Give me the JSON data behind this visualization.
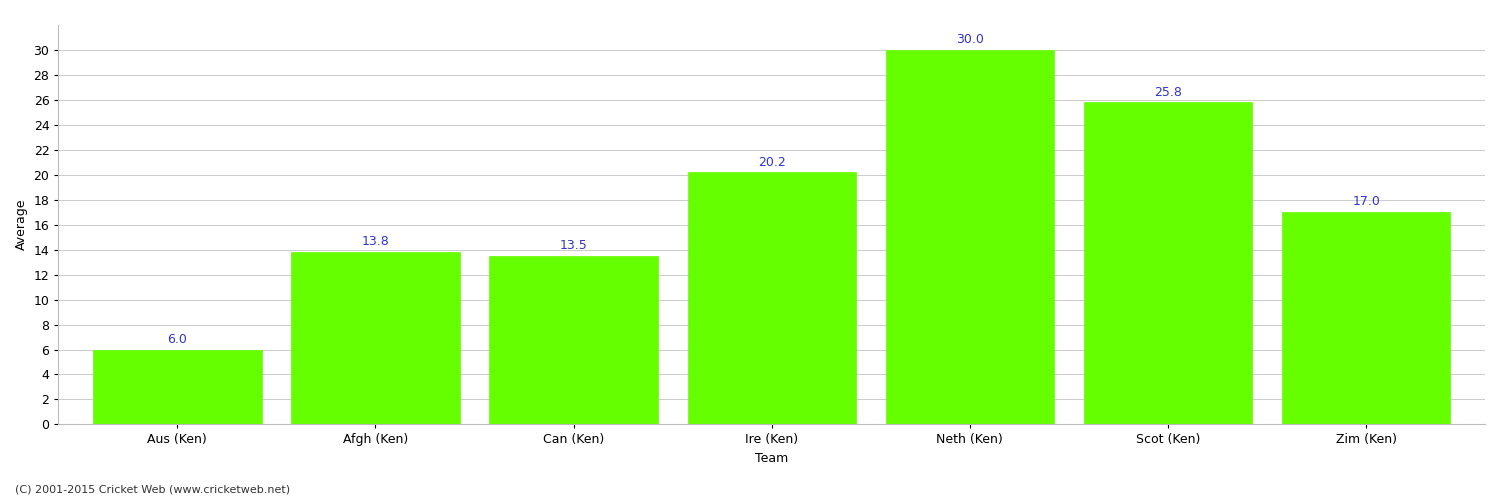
{
  "categories": [
    "Aus (Ken)",
    "Afgh (Ken)",
    "Can (Ken)",
    "Ire (Ken)",
    "Neth (Ken)",
    "Scot (Ken)",
    "Zim (Ken)"
  ],
  "values": [
    6.0,
    13.8,
    13.5,
    20.2,
    30.0,
    25.8,
    17.0
  ],
  "bar_color": "#66ff00",
  "bar_edge_color": "#66ff00",
  "label_color": "#3333cc",
  "xlabel": "Team",
  "ylabel": "Average",
  "ylim": [
    0,
    32
  ],
  "yticks": [
    0,
    2,
    4,
    6,
    8,
    10,
    12,
    14,
    16,
    18,
    20,
    22,
    24,
    26,
    28,
    30
  ],
  "background_color": "#ffffff",
  "grid_color": "#cccccc",
  "footer": "(C) 2001-2015 Cricket Web (www.cricketweb.net)",
  "label_fontsize": 9,
  "axis_fontsize": 9,
  "title_fontsize": 13,
  "bar_width": 0.85
}
